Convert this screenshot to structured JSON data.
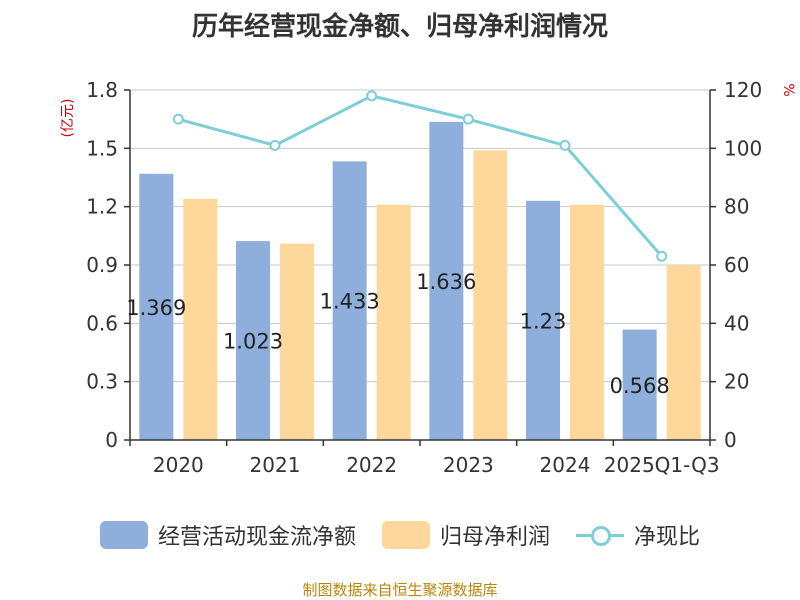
{
  "title": "历年经营现金净额、归母净利润情况",
  "source": "制图数据来自恒生聚源数据库",
  "chart_data": {
    "type": "bar+line",
    "categories": [
      "2020",
      "2021",
      "2022",
      "2023",
      "2024",
      "2025Q1-Q3"
    ],
    "left_axis": {
      "label": "(亿元)",
      "ylim": [
        0,
        1.8
      ],
      "ticks": [
        "0",
        "0.3",
        "0.6",
        "0.9",
        "1.2",
        "1.5",
        "1.8"
      ]
    },
    "right_axis": {
      "label": "%",
      "ylim": [
        0,
        120
      ],
      "ticks": [
        "0",
        "20",
        "40",
        "60",
        "80",
        "100",
        "120"
      ]
    },
    "series": [
      {
        "name": "经营活动现金流净额",
        "type": "bar",
        "axis": "left",
        "color": "#8eafdc",
        "values": [
          1.369,
          1.023,
          1.433,
          1.636,
          1.23,
          0.568
        ],
        "labels": [
          "1.369",
          "1.023",
          "1.433",
          "1.636",
          "1.23",
          "0.568"
        ]
      },
      {
        "name": "归母净利润",
        "type": "bar",
        "axis": "left",
        "color": "#fdd89a",
        "values": [
          1.24,
          1.01,
          1.21,
          1.49,
          1.21,
          0.9
        ]
      },
      {
        "name": "净现比",
        "type": "line",
        "axis": "right",
        "color": "#7dcfd6",
        "values": [
          110,
          101,
          118,
          110,
          101,
          63
        ]
      }
    ],
    "legend_position": "bottom",
    "grid": true
  }
}
